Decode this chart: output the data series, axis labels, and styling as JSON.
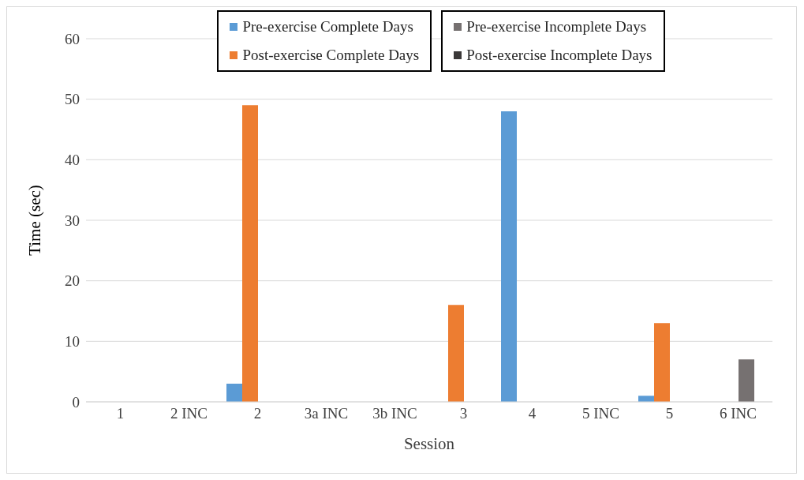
{
  "chart_data": {
    "type": "bar",
    "xlabel": "Session",
    "ylabel": "Time (sec)",
    "categories": [
      "1",
      "2 INC",
      "2",
      "3a INC",
      "3b INC",
      "3",
      "4",
      "5 INC",
      "5",
      "6 INC"
    ],
    "series": [
      {
        "name": "Pre-exercise Complete Days",
        "color": "#5b9bd5",
        "values": [
          null,
          null,
          3,
          null,
          null,
          null,
          48,
          null,
          1,
          null
        ]
      },
      {
        "name": "Post-exercise Complete Days",
        "color": "#ed7d31",
        "values": [
          null,
          null,
          49,
          null,
          null,
          16,
          null,
          null,
          13,
          null
        ]
      },
      {
        "name": "Pre-exercise Incomplete Days",
        "color": "#767171",
        "values": [
          null,
          null,
          null,
          null,
          null,
          null,
          null,
          null,
          null,
          7
        ]
      },
      {
        "name": "Post-exercise Incomplete Days",
        "color": "#3b3838",
        "values": [
          null,
          null,
          null,
          null,
          null,
          null,
          null,
          null,
          null,
          null
        ]
      }
    ],
    "ylim": [
      0,
      60
    ],
    "yticks": [
      0,
      10,
      20,
      30,
      40,
      50,
      60
    ],
    "grid": "y",
    "legend": "top"
  }
}
